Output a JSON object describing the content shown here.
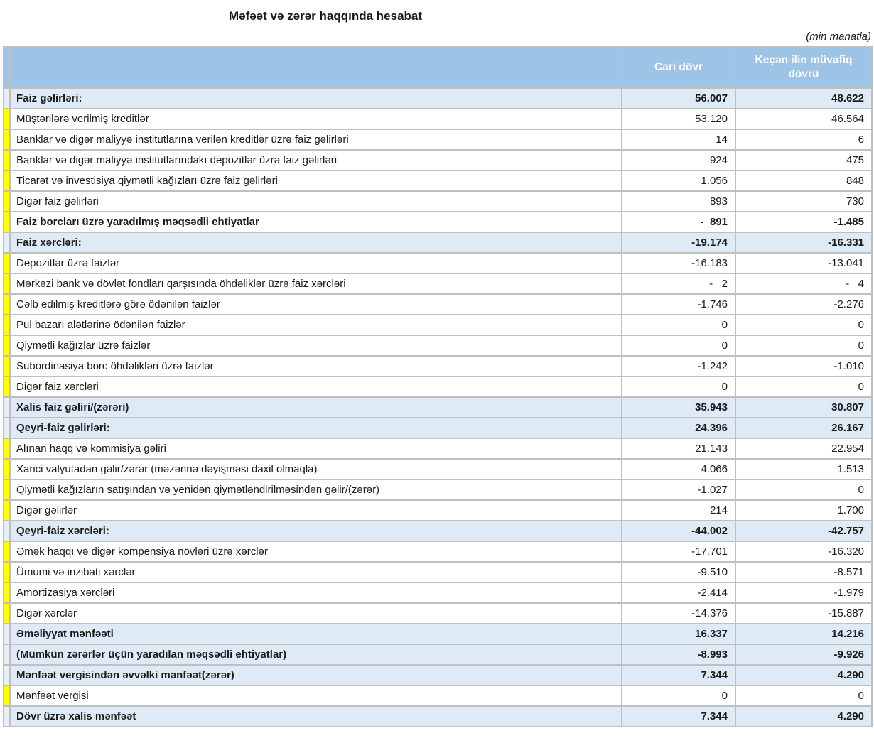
{
  "page": {
    "title": "Məfəət və zərər haqqında hesabat",
    "unit_note": "(min manatla)"
  },
  "table": {
    "columns": {
      "current": "Cari dövr",
      "previous": "Keçən ilin müvafiq dövrü"
    },
    "rows": [
      {
        "label": "Faiz gəlirləri:",
        "current": "56.007",
        "previous": "48.622",
        "highlight": true,
        "bold": true
      },
      {
        "label": "Müştərilərə verilmiş kreditlər",
        "current": "53.120",
        "previous": "46.564",
        "highlight": false,
        "bold": false
      },
      {
        "label": "Banklar və digər maliyyə institutlarına verilən kreditlər üzrə faiz gəlirləri",
        "current": "14",
        "previous": "6",
        "highlight": false,
        "bold": false
      },
      {
        "label": "Banklar və digər maliyyə institutlarındakı depozitlər üzrə faiz gəlirləri",
        "current": "924",
        "previous": "475",
        "highlight": false,
        "bold": false
      },
      {
        "label": "Ticarət və investisiya qiymətli kağızları üzrə faiz gəlirləri",
        "current": "1.056",
        "previous": "848",
        "highlight": false,
        "bold": false
      },
      {
        "label": "Digər faiz gəlirləri",
        "current": "893",
        "previous": "730",
        "highlight": false,
        "bold": false
      },
      {
        "label": "Faiz borcları üzrə yaradılmış məqsədli ehtiyatlar",
        "current": "-  891",
        "previous": "-1.485",
        "highlight": false,
        "bold": true
      },
      {
        "label": "Faiz xərcləri:",
        "current": "-19.174",
        "previous": "-16.331",
        "highlight": true,
        "bold": true
      },
      {
        "label": "Depozitlər üzrə faizlər",
        "current": "-16.183",
        "previous": "-13.041",
        "highlight": false,
        "bold": false
      },
      {
        "label": "Mərkəzi bank və dövlət fondları qarşısında öhdəliklər üzrə faiz xərcləri",
        "current": "-   2",
        "previous": "-   4",
        "highlight": false,
        "bold": false
      },
      {
        "label": "Cəlb edilmiş kreditlərə görə ödənilən faizlər",
        "current": "-1.746",
        "previous": "-2.276",
        "highlight": false,
        "bold": false
      },
      {
        "label": "Pul bazarı alətlərinə ödənilən faizlər",
        "current": "0",
        "previous": "0",
        "highlight": false,
        "bold": false
      },
      {
        "label": "Qiymətli kağızlar üzrə faizlər",
        "current": "0",
        "previous": "0",
        "highlight": false,
        "bold": false
      },
      {
        "label": "Subordinasiya borc öhdəlikləri üzrə faizlər",
        "current": "-1.242",
        "previous": "-1.010",
        "highlight": false,
        "bold": false
      },
      {
        "label": "Digər faiz xərcləri",
        "current": "0",
        "previous": "0",
        "highlight": false,
        "bold": false
      },
      {
        "label": "Xalis faiz gəliri/(zərəri)",
        "current": "35.943",
        "previous": "30.807",
        "highlight": true,
        "bold": true
      },
      {
        "label": "Qeyri-faiz gəlirləri:",
        "current": "24.396",
        "previous": "26.167",
        "highlight": true,
        "bold": true
      },
      {
        "label": "Alınan haqq və kommisiya gəliri",
        "current": "21.143",
        "previous": "22.954",
        "highlight": false,
        "bold": false
      },
      {
        "label": "Xarici valyutadan gəlir/zərər (məzənnə dəyişməsi daxil olmaqla)",
        "current": "4.066",
        "previous": "1.513",
        "highlight": false,
        "bold": false
      },
      {
        "label": "Qiymətli kağızların satışından və yenidən qiymətləndirilməsindən gəlir/(zərər)",
        "current": "-1.027",
        "previous": "0",
        "highlight": false,
        "bold": false
      },
      {
        "label": "Digər gəlirlər",
        "current": "214",
        "previous": "1.700",
        "highlight": false,
        "bold": false
      },
      {
        "label": "Qeyri-faiz xərcləri:",
        "current": "-44.002",
        "previous": "-42.757",
        "highlight": true,
        "bold": true
      },
      {
        "label": "Əmək haqqı və digər kompensiya növləri üzrə xərclər",
        "current": "-17.701",
        "previous": "-16.320",
        "highlight": false,
        "bold": false
      },
      {
        "label": "Ümumi və inzibati xərclər",
        "current": "-9.510",
        "previous": "-8.571",
        "highlight": false,
        "bold": false
      },
      {
        "label": "Amortizasiya xərcləri",
        "current": "-2.414",
        "previous": "-1.979",
        "highlight": false,
        "bold": false
      },
      {
        "label": "Digər xərclər",
        "current": "-14.376",
        "previous": "-15.887",
        "highlight": false,
        "bold": false
      },
      {
        "label": "Əməliyyat mənfəəti",
        "current": "16.337",
        "previous": "14.216",
        "highlight": true,
        "bold": true
      },
      {
        "label": "(Mümkün zərərlər üçün yaradılan məqsədli ehtiyatlar)",
        "current": "-8.993",
        "previous": "-9.926",
        "highlight": true,
        "bold": true
      },
      {
        "label": "Mənfəət vergisindən əvvəlki mənfəət(zərər)",
        "current": "7.344",
        "previous": "4.290",
        "highlight": true,
        "bold": true
      },
      {
        "label": "Mənfəət vergisi",
        "current": "0",
        "previous": "0",
        "highlight": false,
        "bold": false
      },
      {
        "label": "Dövr üzrə xalis mənfəət",
        "current": "7.344",
        "previous": "4.290",
        "highlight": true,
        "bold": true
      }
    ]
  },
  "colors": {
    "header_bg": "#9DC3E6",
    "section_row_bg": "#DEEAF6",
    "row_marker_yellow": "#FFFF00",
    "grid_line": "#BFBFBF",
    "header_text": "#FFFFFF"
  }
}
